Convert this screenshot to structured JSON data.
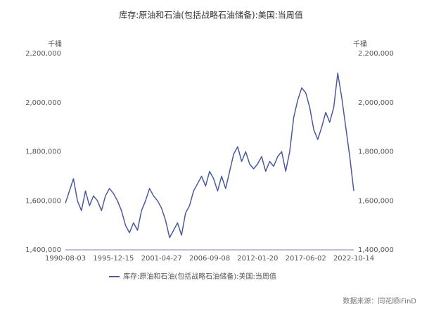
{
  "chart_data": {
    "type": "line",
    "title": "库存:原油和石油(包括战略石油储备):美国:当周值",
    "y_unit": "千桶",
    "y2_unit": "千桶",
    "source": "数据来源：同花顺iFinD",
    "categories": [
      "1990-08-03",
      null,
      null,
      null,
      null,
      null,
      null,
      null,
      null,
      null,
      null,
      null,
      "1995-12-15",
      null,
      null,
      null,
      null,
      null,
      null,
      null,
      null,
      null,
      null,
      null,
      "2001-04-27",
      null,
      null,
      null,
      null,
      null,
      null,
      null,
      null,
      null,
      null,
      null,
      "2006-09-08",
      null,
      null,
      null,
      null,
      null,
      null,
      null,
      null,
      null,
      null,
      null,
      "2012-01-20",
      null,
      null,
      null,
      null,
      null,
      null,
      null,
      null,
      null,
      null,
      null,
      "2017-06-02",
      null,
      null,
      null,
      null,
      null,
      null,
      null,
      null,
      null,
      null,
      null,
      "2022-10-14"
    ],
    "series": [
      {
        "name": "库存:原油和石油(包括战略石油储备):美国:当周值",
        "color": "#4b5a9c",
        "values": [
          1590000,
          1640000,
          1690000,
          1600000,
          1560000,
          1640000,
          1580000,
          1620000,
          1600000,
          1560000,
          1620000,
          1650000,
          1630000,
          1600000,
          1560000,
          1500000,
          1470000,
          1510000,
          1480000,
          1560000,
          1600000,
          1650000,
          1620000,
          1600000,
          1570000,
          1520000,
          1450000,
          1480000,
          1510000,
          1460000,
          1550000,
          1580000,
          1640000,
          1670000,
          1700000,
          1660000,
          1720000,
          1690000,
          1640000,
          1700000,
          1650000,
          1720000,
          1790000,
          1820000,
          1760000,
          1800000,
          1750000,
          1730000,
          1750000,
          1780000,
          1720000,
          1760000,
          1740000,
          1780000,
          1800000,
          1720000,
          1800000,
          1940000,
          2010000,
          2060000,
          2040000,
          1980000,
          1890000,
          1850000,
          1900000,
          1960000,
          1920000,
          1980000,
          2120000,
          2020000,
          1900000,
          1780000,
          1640000
        ]
      }
    ],
    "ylim": [
      1400000,
      2200000
    ],
    "yticks": [
      {
        "value": 1400000,
        "label": "1,400,000"
      },
      {
        "value": 1600000,
        "label": "1,600,000"
      },
      {
        "value": 1800000,
        "label": "1,800,000"
      },
      {
        "value": 2000000,
        "label": "2,000,000"
      },
      {
        "value": 2200000,
        "label": "2,200,000"
      }
    ],
    "y2lim": [
      1400000,
      2200000
    ],
    "y2ticks": [
      {
        "value": 1400000,
        "label": "1,400,000"
      },
      {
        "value": 1600000,
        "label": "1,600,000"
      },
      {
        "value": 1800000,
        "label": "1,800,000"
      },
      {
        "value": 2000000,
        "label": "2,000,000"
      },
      {
        "value": 2200000,
        "label": "2,200,000"
      }
    ],
    "grid": false,
    "legend": "bottom"
  }
}
